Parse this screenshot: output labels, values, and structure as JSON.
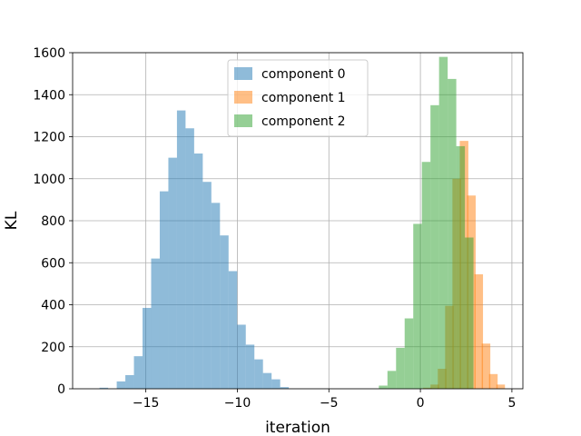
{
  "chart_data": {
    "type": "bar",
    "xlabel": "iteration",
    "ylabel": "KL",
    "xlim": [
      -19.0,
      5.6
    ],
    "ylim": [
      0,
      1600
    ],
    "xticks": [
      -15,
      -10,
      -5,
      0,
      5
    ],
    "xtick_labels": [
      "−15",
      "−10",
      "−5",
      "0",
      "5"
    ],
    "yticks": [
      0,
      200,
      400,
      600,
      800,
      1000,
      1200,
      1400,
      1600
    ],
    "ytick_labels": [
      "0",
      "200",
      "400",
      "600",
      "800",
      "1000",
      "1200",
      "1400",
      "1600"
    ],
    "grid": true,
    "legend_position": "top-center",
    "bin_width": 0.47,
    "series": [
      {
        "name": "component 0",
        "color": "#1f77b4",
        "alpha": 0.5,
        "bins": [
          [
            -17.53,
            5
          ],
          [
            -17.06,
            0
          ],
          [
            -16.59,
            35
          ],
          [
            -16.12,
            65
          ],
          [
            -15.65,
            155
          ],
          [
            -15.18,
            385
          ],
          [
            -14.71,
            620
          ],
          [
            -14.24,
            940
          ],
          [
            -13.77,
            1100
          ],
          [
            -13.3,
            1325
          ],
          [
            -12.83,
            1240
          ],
          [
            -12.36,
            1120
          ],
          [
            -11.89,
            985
          ],
          [
            -11.42,
            885
          ],
          [
            -10.95,
            730
          ],
          [
            -10.48,
            560
          ],
          [
            -10.01,
            305
          ],
          [
            -9.54,
            210
          ],
          [
            -9.07,
            140
          ],
          [
            -8.6,
            75
          ],
          [
            -8.13,
            45
          ],
          [
            -7.66,
            8
          ]
        ]
      },
      {
        "name": "component 1",
        "color": "#ff7f0e",
        "alpha": 0.5,
        "bins": [
          [
            0.15,
            5
          ],
          [
            0.55,
            20
          ],
          [
            0.95,
            95
          ],
          [
            1.35,
            395
          ],
          [
            1.75,
            1000
          ],
          [
            2.15,
            1180
          ],
          [
            2.55,
            920
          ],
          [
            2.95,
            545
          ],
          [
            3.35,
            215
          ],
          [
            3.75,
            70
          ],
          [
            4.15,
            20
          ]
        ]
      },
      {
        "name": "component 2",
        "color": "#2ca02c",
        "alpha": 0.5,
        "bins": [
          [
            -2.27,
            15
          ],
          [
            -1.8,
            85
          ],
          [
            -1.33,
            195
          ],
          [
            -0.86,
            335
          ],
          [
            -0.39,
            785
          ],
          [
            0.08,
            1080
          ],
          [
            0.55,
            1350
          ],
          [
            1.02,
            1580
          ],
          [
            1.49,
            1475
          ],
          [
            1.96,
            1155
          ],
          [
            2.43,
            720
          ]
        ]
      }
    ]
  }
}
